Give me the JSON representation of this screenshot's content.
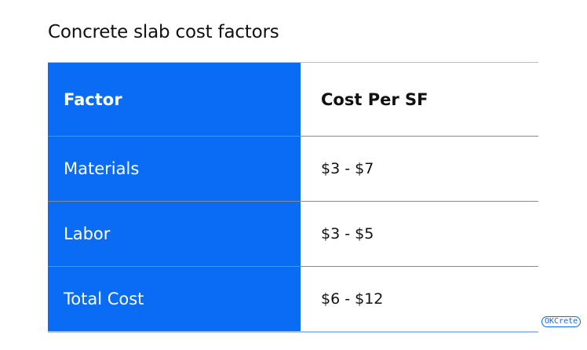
{
  "title": "Concrete slab cost factors",
  "table": {
    "headers": [
      "Factor",
      "Cost Per SF"
    ],
    "rows": [
      [
        "Materials",
        "$3 - $7"
      ],
      [
        "Labor",
        "$3 - $5"
      ],
      [
        "Total Cost",
        "$6 - $12"
      ]
    ]
  },
  "logo": "OKCrete",
  "colors": {
    "accent": "#0a6cf5"
  }
}
